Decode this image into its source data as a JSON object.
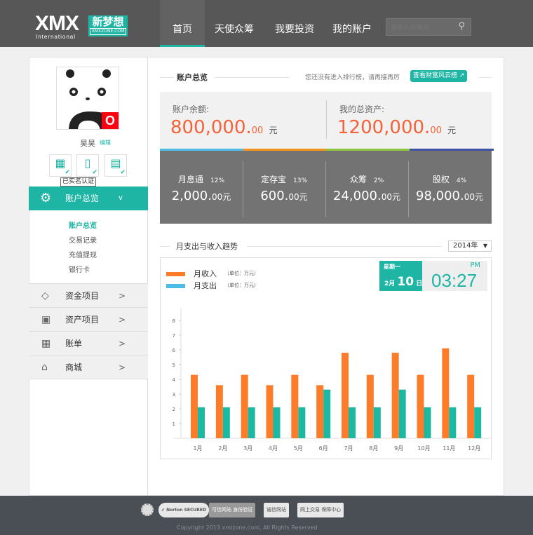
{
  "header": {
    "logo": "XMX",
    "logo_sub": "International",
    "logo_cn": "新梦想",
    "logo_domain": "XMXZONE.COM",
    "nav": [
      {
        "label": "首页",
        "active": true
      },
      {
        "label": "天使众筹"
      },
      {
        "label": "我要投资"
      },
      {
        "label": "我的账户"
      }
    ],
    "search_placeholder": "请输入关键词",
    "search_icon": "search-icon"
  },
  "profile": {
    "name": "昊昊",
    "edit": "编辑",
    "badge": "O",
    "verify_tooltip": "已实名认证",
    "verify_icons": [
      "id-card-icon",
      "phone-icon",
      "bank-card-icon"
    ]
  },
  "sidebar": {
    "active": {
      "label": "账户总览",
      "arrow": "v",
      "icon": "gear-icon"
    },
    "sub": [
      {
        "label": "账户总览",
        "active": true
      },
      {
        "label": "交易记录"
      },
      {
        "label": "充值提现"
      },
      {
        "label": "银行卡"
      }
    ],
    "items": [
      {
        "label": "资金项目",
        "icon": "money-icon",
        "arrow": ">"
      },
      {
        "label": "资产项目",
        "icon": "wallet-icon",
        "arrow": ">"
      },
      {
        "label": "账单",
        "icon": "calendar-icon",
        "arrow": ">"
      },
      {
        "label": "商城",
        "icon": "store-icon",
        "arrow": ">"
      }
    ]
  },
  "overview": {
    "title": "账户总览",
    "rank_text": "您还没有进入排行榜，请再接再厉",
    "rank_button": "查看财富风云榜",
    "balance_label": "账户余额:",
    "balance": "800,000.",
    "balance_dec": "00",
    "unit": "元",
    "assets_label": "我的总资产:",
    "assets": "1200,000.",
    "assets_dec": "00",
    "strip_colors": [
      "#4dbde8",
      "#f7941d",
      "#8dc63f",
      "#3f51a3"
    ],
    "products": [
      {
        "name": "月息通",
        "rate": "12%",
        "value": "2,000.",
        "dec": "00元"
      },
      {
        "name": "定存宝",
        "rate": "13%",
        "value": "600.",
        "dec": "00元"
      },
      {
        "name": "众筹",
        "rate": "2%",
        "value": "24,000.",
        "dec": "00元"
      },
      {
        "name": "股权",
        "rate": "4%",
        "value": "98,000.",
        "dec": "00元"
      }
    ]
  },
  "trend": {
    "title": "月支出与收入趋势",
    "year": "2014年",
    "weekday": "星期一",
    "month": "2月",
    "day": "10",
    "day_unit": "日",
    "ampm": "PM",
    "time": "03:27"
  },
  "chart_data": {
    "type": "bar",
    "categories": [
      "1月",
      "2月",
      "3月",
      "4月",
      "5月",
      "6月",
      "7月",
      "8月",
      "9月",
      "10月",
      "11月",
      "12月"
    ],
    "series": [
      {
        "name": "月收入",
        "unit": "（单位：万元）",
        "color": "#fd7c2a",
        "values": [
          4.3,
          3.6,
          4.3,
          3.6,
          4.3,
          3.6,
          5.8,
          4.3,
          5.8,
          4.3,
          6.1,
          4.3
        ]
      },
      {
        "name": "月支出",
        "unit": "（单位：万元）",
        "color": "#1cb9a2",
        "legend_color": "#4dbde8",
        "values": [
          2.1,
          2.1,
          2.1,
          2.1,
          2.1,
          3.3,
          2.1,
          2.1,
          3.3,
          2.1,
          2.1,
          2.1
        ]
      }
    ],
    "yticks": [
      1,
      2,
      3,
      4,
      5,
      6,
      7,
      8
    ],
    "ylim": [
      0,
      8.8
    ],
    "legend": "top-left",
    "grid": false
  },
  "footer": {
    "badges": [
      "可信网站 身份验证",
      "诚信网站",
      "网上交易 保障中心"
    ],
    "norton": "Norton SECURED",
    "copyright": "Copyright 2013 xmizone.com, All Rights Reserved"
  }
}
